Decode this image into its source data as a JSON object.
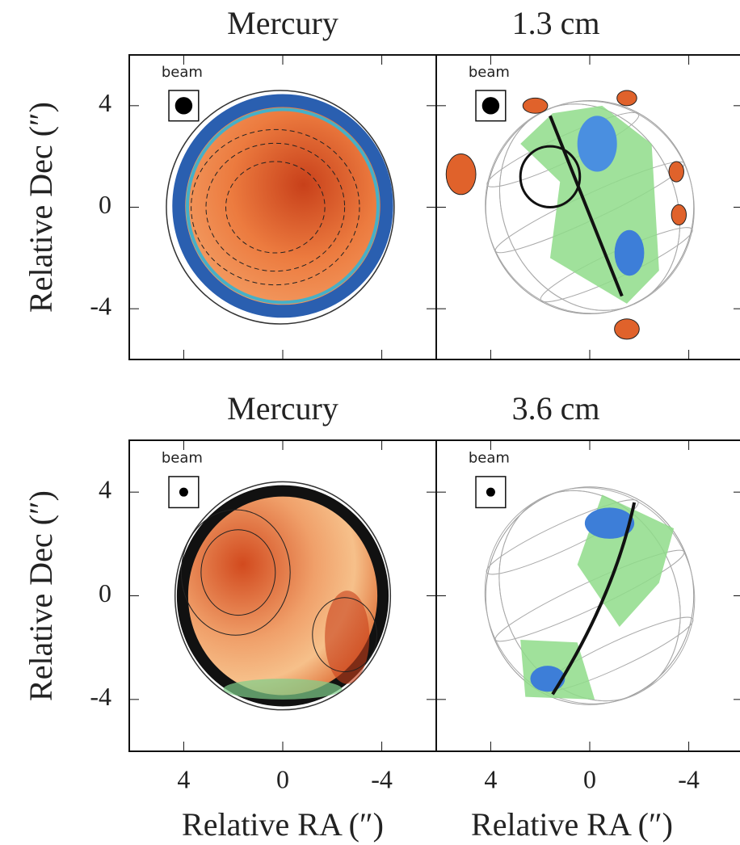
{
  "chart_data": [
    {
      "type": "image",
      "title": "Mercury",
      "annotation": "beam",
      "ylabel": "Relative Dec (″)",
      "xlim": [
        6.2,
        -6.2
      ],
      "ylim": [
        -6,
        6
      ],
      "xticks": [
        4,
        0,
        -4
      ],
      "yticks": [
        4,
        0,
        -4
      ]
    },
    {
      "type": "image",
      "title": "1.3 cm",
      "annotation": "beam",
      "xlim": [
        6.2,
        -6.2
      ],
      "ylim": [
        -6,
        6
      ],
      "xticks": [
        4,
        0,
        -4
      ],
      "yticks": [
        4,
        0,
        -4
      ]
    },
    {
      "type": "image",
      "title": "Mercury",
      "annotation": "beam",
      "ylabel": "Relative Dec (″)",
      "xlabel": "Relative RA (″)",
      "xlim": [
        6.2,
        -6.2
      ],
      "ylim": [
        -6,
        6
      ],
      "xticks": [
        4,
        0,
        -4
      ],
      "yticks": [
        4,
        0,
        -4
      ]
    },
    {
      "type": "image",
      "title": "3.6 cm",
      "annotation": "beam",
      "xlabel": "Relative RA (″)",
      "xlim": [
        6.2,
        -6.2
      ],
      "ylim": [
        -6,
        6
      ],
      "xticks": [
        4,
        0,
        -4
      ],
      "yticks": [
        4,
        0,
        -4
      ]
    }
  ]
}
